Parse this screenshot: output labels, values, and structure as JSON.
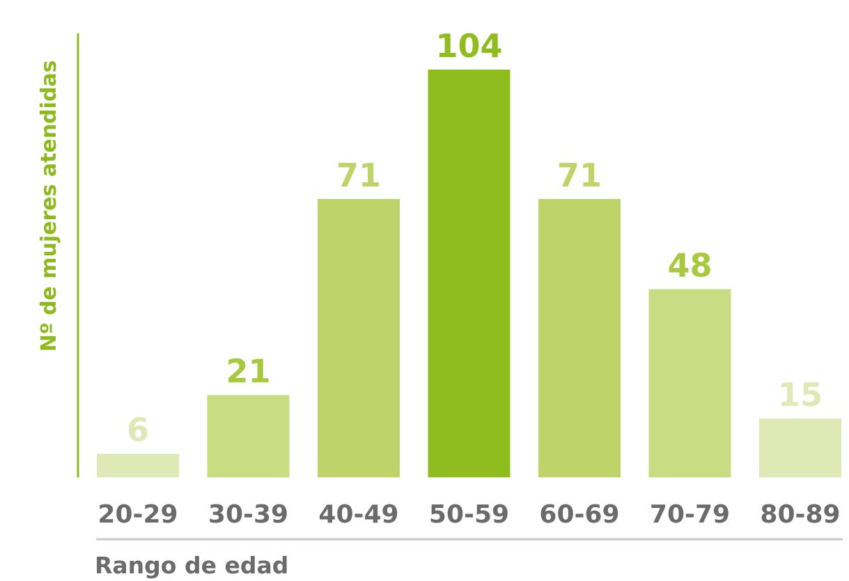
{
  "chart_data": {
    "type": "bar",
    "title": "",
    "xlabel": "Rango de edad",
    "ylabel": "Nº de mujeres atendidas",
    "categories": [
      "20-29",
      "30-39",
      "40-49",
      "50-59",
      "60-69",
      "70-79",
      "80-89"
    ],
    "values": [
      6,
      21,
      71,
      104,
      71,
      48,
      15
    ],
    "ylim": [
      0,
      104
    ],
    "grid": false,
    "legend": "none",
    "colors": {
      "bars": [
        "#dfe9b6",
        "#c8dc84",
        "#bfd36a",
        "#8fbc1e",
        "#bfd36a",
        "#c8dc84",
        "#dfe9b6"
      ],
      "labels": [
        "#dfe9b6",
        "#a8c840",
        "#bfd36a",
        "#8fbc1e",
        "#bfd36a",
        "#a8c840",
        "#dfe9b6"
      ],
      "axis": "#8dbb1e",
      "ticks": "#6b6b6b"
    }
  }
}
